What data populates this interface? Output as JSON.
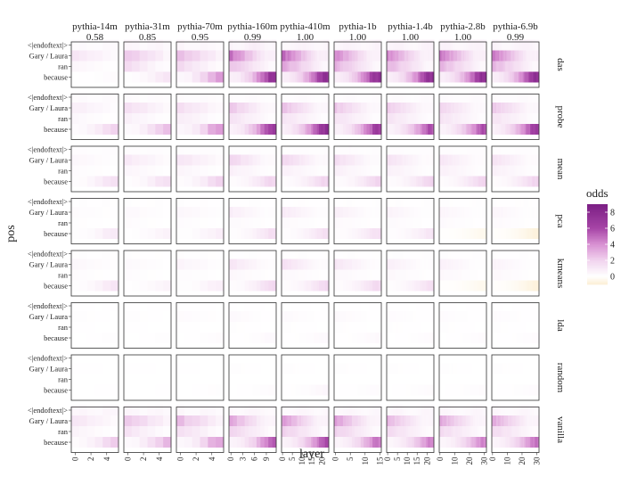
{
  "chart_data": {
    "type": "heatmap",
    "xlabel": "layer",
    "ylabel": "pos",
    "legend": {
      "title": "odds",
      "ticks": [
        8,
        6,
        4,
        2,
        0
      ],
      "range": [
        -1,
        9
      ],
      "placement": "right",
      "colors": [
        "#fcefd5",
        "#ffffff",
        "#f1d3ee",
        "#d890d2",
        "#a644a6",
        "#7b1f84"
      ]
    },
    "positions": [
      "<|endoftext|>",
      "Gary / Laura",
      "ran",
      "because"
    ],
    "rows": [
      "das",
      "probe",
      "mean",
      "pca",
      "kmeans",
      "lda",
      "random",
      "vanilla"
    ],
    "columns": [
      {
        "model": "pythia-14m",
        "score": "0.58",
        "layers": 6,
        "ticks": [
          "0",
          "2",
          "4"
        ]
      },
      {
        "model": "pythia-31m",
        "score": "0.85",
        "layers": 6,
        "ticks": [
          "0",
          "2",
          "4"
        ]
      },
      {
        "model": "pythia-70m",
        "score": "0.95",
        "layers": 6,
        "ticks": [
          "0",
          "2",
          "4"
        ]
      },
      {
        "model": "pythia-160m",
        "score": "0.99",
        "layers": 12,
        "ticks": [
          "0",
          "3",
          "6",
          "9"
        ]
      },
      {
        "model": "pythia-410m",
        "score": "1.00",
        "layers": 24,
        "ticks": [
          "0",
          "5",
          "10",
          "15",
          "20"
        ]
      },
      {
        "model": "pythia-1b",
        "score": "1.00",
        "layers": 16,
        "ticks": [
          "0",
          "5",
          "10",
          "15"
        ]
      },
      {
        "model": "pythia-1.4b",
        "score": "1.00",
        "layers": 24,
        "ticks": [
          "0",
          "5",
          "10",
          "15",
          "20"
        ]
      },
      {
        "model": "pythia-2.8b",
        "score": "1.00",
        "layers": 32,
        "ticks": [
          "0",
          "10",
          "20",
          "30"
        ]
      },
      {
        "model": "pythia-6.9b",
        "score": "0.99",
        "layers": 32,
        "ticks": [
          "0",
          "10",
          "20",
          "30"
        ]
      }
    ],
    "peak_odds": {
      "das": [
        [
          0.4,
          1.2,
          0.5,
          0.2
        ],
        [
          0.6,
          2.5,
          1.8,
          1.2
        ],
        [
          0.6,
          2.8,
          2.0,
          4.0
        ],
        [
          1.0,
          5.0,
          3.0,
          7.5
        ],
        [
          0.8,
          5.5,
          4.0,
          8.0
        ],
        [
          0.8,
          4.5,
          3.5,
          8.0
        ],
        [
          0.8,
          4.5,
          3.5,
          8.0
        ],
        [
          0.8,
          5.0,
          3.5,
          8.0
        ],
        [
          0.8,
          5.0,
          3.5,
          8.0
        ]
      ],
      "probe": [
        [
          0.3,
          0.8,
          0.4,
          2.0
        ],
        [
          0.3,
          1.5,
          0.8,
          2.8
        ],
        [
          0.3,
          1.5,
          1.0,
          4.0
        ],
        [
          0.3,
          2.5,
          1.5,
          7.0
        ],
        [
          0.3,
          2.8,
          1.5,
          8.0
        ],
        [
          0.3,
          2.5,
          1.5,
          7.0
        ],
        [
          0.3,
          2.3,
          1.5,
          6.0
        ],
        [
          0.3,
          2.0,
          1.5,
          6.0
        ],
        [
          0.3,
          2.5,
          1.5,
          7.0
        ]
      ],
      "mean": [
        [
          0.2,
          0.4,
          0.2,
          1.5
        ],
        [
          0.2,
          1.0,
          0.5,
          1.5
        ],
        [
          0.2,
          1.2,
          0.5,
          2.0
        ],
        [
          0.2,
          2.0,
          0.8,
          2.0
        ],
        [
          0.2,
          2.0,
          0.8,
          2.0
        ],
        [
          0.2,
          1.6,
          0.8,
          2.0
        ],
        [
          0.2,
          1.4,
          0.8,
          2.0
        ],
        [
          0.2,
          1.2,
          0.8,
          2.0
        ],
        [
          0.2,
          1.4,
          0.8,
          2.0
        ]
      ],
      "pca": [
        [
          0.1,
          0.2,
          0.1,
          1.0
        ],
        [
          0.1,
          0.3,
          0.2,
          0.6
        ],
        [
          0.1,
          0.4,
          0.2,
          0.8
        ],
        [
          0.1,
          0.8,
          0.3,
          1.5
        ],
        [
          0.1,
          1.0,
          0.3,
          1.5
        ],
        [
          0.1,
          0.8,
          0.3,
          1.5
        ],
        [
          0.1,
          0.6,
          0.3,
          1.2
        ],
        [
          0.1,
          0.5,
          0.3,
          -0.4
        ],
        [
          0.1,
          0.5,
          0.3,
          -0.8
        ]
      ],
      "kmeans": [
        [
          0.1,
          0.4,
          0.2,
          1.2
        ],
        [
          0.1,
          0.3,
          0.2,
          0.6
        ],
        [
          0.1,
          0.5,
          0.2,
          0.8
        ],
        [
          0.1,
          1.2,
          0.4,
          1.8
        ],
        [
          0.1,
          1.5,
          0.4,
          1.8
        ],
        [
          0.1,
          1.2,
          0.4,
          1.8
        ],
        [
          0.1,
          0.8,
          0.4,
          1.5
        ],
        [
          0.1,
          0.7,
          0.4,
          -0.4
        ],
        [
          0.1,
          0.6,
          0.4,
          -0.8
        ]
      ],
      "lda": [
        [
          0.05,
          0.1,
          0.05,
          0.1
        ],
        [
          0.05,
          0.1,
          0.05,
          0.1
        ],
        [
          0.05,
          0.2,
          0.05,
          0.2
        ],
        [
          0.05,
          0.3,
          0.1,
          0.3
        ],
        [
          0.05,
          0.3,
          0.1,
          0.3
        ],
        [
          0.05,
          0.3,
          0.1,
          0.3
        ],
        [
          0.05,
          0.2,
          0.1,
          0.2
        ],
        [
          0.05,
          0.2,
          0.1,
          0.2
        ],
        [
          0.05,
          0.2,
          0.1,
          0.2
        ]
      ],
      "random": [
        [
          0.0,
          0.05,
          0.0,
          0.05
        ],
        [
          0.0,
          0.05,
          0.0,
          0.05
        ],
        [
          0.0,
          0.05,
          0.0,
          0.1
        ],
        [
          0.0,
          0.1,
          0.0,
          0.2
        ],
        [
          0.0,
          0.1,
          0.0,
          0.4
        ],
        [
          0.0,
          0.1,
          0.0,
          0.2
        ],
        [
          0.0,
          0.1,
          0.0,
          0.2
        ],
        [
          0.0,
          0.1,
          0.0,
          0.2
        ],
        [
          0.0,
          0.1,
          0.0,
          0.2
        ]
      ],
      "vanilla": [
        [
          0.6,
          1.2,
          0.6,
          2.2
        ],
        [
          0.6,
          2.5,
          1.5,
          3.0
        ],
        [
          0.6,
          2.8,
          1.8,
          3.8
        ],
        [
          0.6,
          3.5,
          2.2,
          5.5
        ],
        [
          0.6,
          4.0,
          2.5,
          6.0
        ],
        [
          0.6,
          3.8,
          2.5,
          5.0
        ],
        [
          0.6,
          3.0,
          2.0,
          4.5
        ],
        [
          0.6,
          3.5,
          2.0,
          4.5
        ],
        [
          0.6,
          3.5,
          2.0,
          5.0
        ]
      ]
    }
  }
}
